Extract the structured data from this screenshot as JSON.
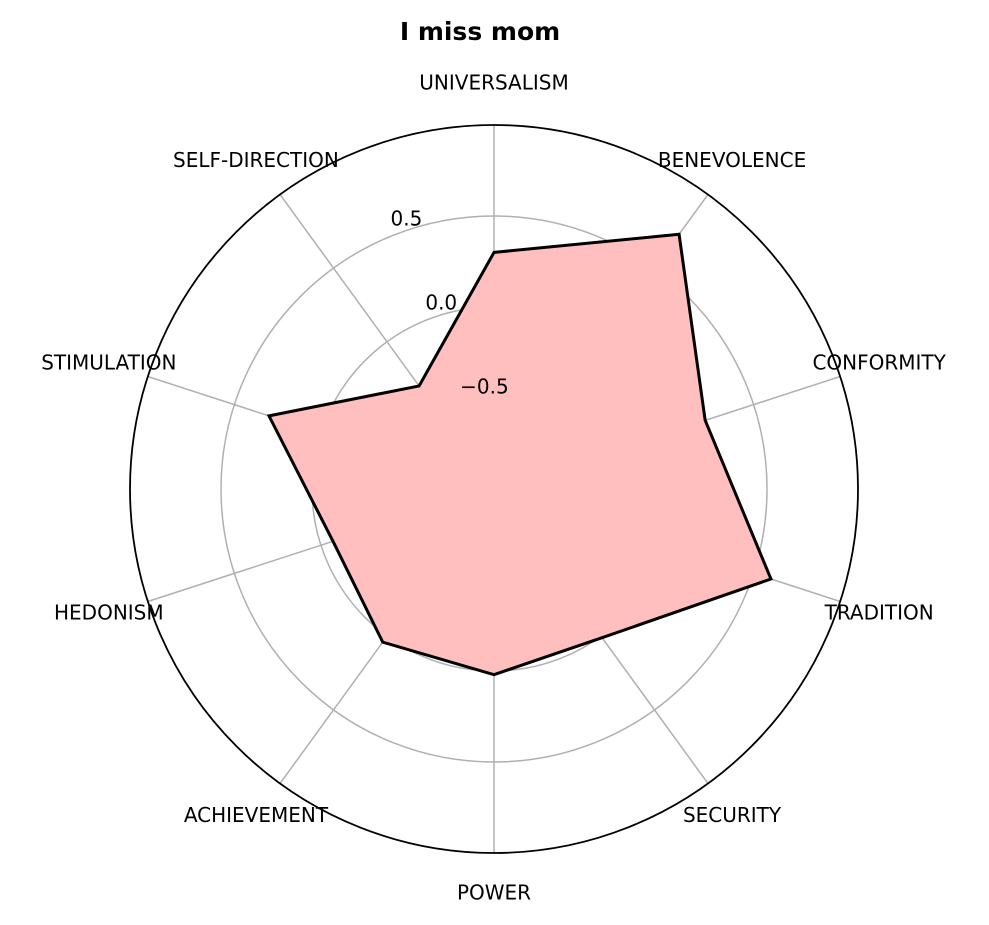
{
  "chart_data": {
    "type": "radar",
    "title": "I miss mom",
    "categories": [
      "UNIVERSALISM",
      "BENEVOLENCE",
      "CONFORMITY",
      "TRADITION",
      "SECURITY",
      "POWER",
      "ACHIEVEMENT",
      "HEDONISM",
      "STIMULATION",
      "SELF-DIRECTION"
    ],
    "values": [
      0.3,
      0.73,
      0.22,
      0.6,
      0.01,
      0.02,
      0.04,
      -0.07,
      0.3,
      -0.3
    ],
    "color": "#ffbfbf",
    "line_color": "#000000",
    "ylim": [
      -1,
      1
    ],
    "yticks": [
      -0.5,
      0.0,
      0.5
    ],
    "grid": true
  }
}
